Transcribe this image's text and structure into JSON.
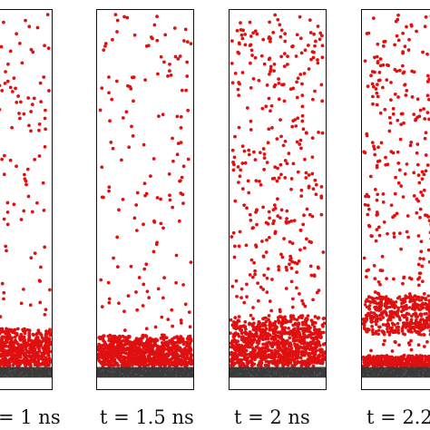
{
  "colors": {
    "particle": "#e01010",
    "substrate": "#3a3a3a",
    "frame": "#111111",
    "background": "#ffffff"
  },
  "panels": [
    {
      "caption": "= 1 ns",
      "time_ns": 1
    },
    {
      "caption": "t = 1.5 ns",
      "time_ns": 1.5
    },
    {
      "caption": "t = 2 ns",
      "time_ns": 2
    },
    {
      "caption": "t = 2.2",
      "time_ns": 2.2
    }
  ]
}
